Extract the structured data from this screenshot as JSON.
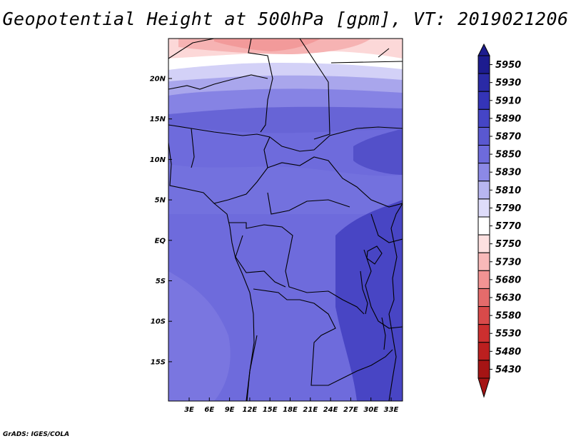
{
  "title": "Geopotential Height at 500hPa [gpm], VT: 2019021206",
  "footer": "GrADS: IGES/COLA",
  "map": {
    "lat_labels": [
      "20N",
      "15N",
      "10N",
      "5N",
      "EQ",
      "5S",
      "10S",
      "15S"
    ],
    "lon_labels": [
      "3E",
      "6E",
      "9E",
      "12E",
      "15E",
      "18E",
      "21E",
      "24E",
      "27E",
      "30E",
      "33E"
    ]
  },
  "colorbar": {
    "levels": [
      "5950",
      "5930",
      "5910",
      "5890",
      "5870",
      "5850",
      "5830",
      "5810",
      "5790",
      "5770",
      "5750",
      "5730",
      "5680",
      "5630",
      "5580",
      "5530",
      "5480",
      "5430"
    ],
    "colors": [
      "#1d1c8f",
      "#2a2aa6",
      "#3434b8",
      "#4545c6",
      "#5a58d0",
      "#6e6bdc",
      "#8c89e6",
      "#b8b6f0",
      "#dedcfa",
      "#ffffff",
      "#fde0e0",
      "#f8b9b9",
      "#f29393",
      "#e56b6b",
      "#d94a4a",
      "#cc2f2f",
      "#bb1f1f",
      "#a51414"
    ]
  },
  "field_colors": {
    "high_south": "#6560d8",
    "mid": "#6e6bdc",
    "core": "#4845c4",
    "north_low": "#f4a3a3"
  }
}
